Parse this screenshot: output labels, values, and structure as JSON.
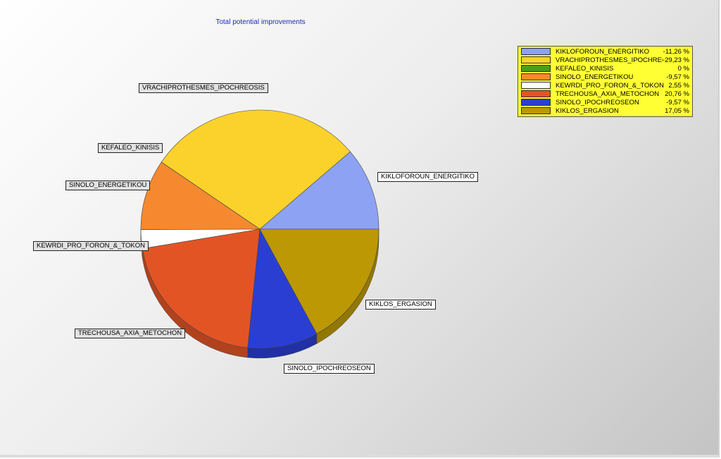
{
  "chart_data": {
    "type": "pie",
    "title": "Total potential improvements",
    "series": [
      {
        "name": "KIKLOFOROUN_ENERGITIKO",
        "value": -11.26,
        "value_label": "-11,26 %",
        "color": "#8ea2f4"
      },
      {
        "name": "VRACHIPROTHESMES_IPOCHREOSIS",
        "value": -29.23,
        "value_label": "-29,23 %",
        "color": "#fbd22c"
      },
      {
        "name": "KEFALEO_KINISIS",
        "value": 0,
        "value_label": "0 %",
        "color": "#4a9e1c"
      },
      {
        "name": "SINOLO_ENERGETIKOU",
        "value": -9.57,
        "value_label": "-9,57 %",
        "color": "#f6892f"
      },
      {
        "name": "KEWRDI_PRO_FORON_&_TOKON",
        "value": 2.55,
        "value_label": "2,55 %",
        "color": "#ffffff"
      },
      {
        "name": "TRECHOUSA_AXIA_METOCHON",
        "value": 20.76,
        "value_label": "20,76 %",
        "color": "#e35425"
      },
      {
        "name": "SINOLO_IPOCHREOSEON",
        "value": -9.57,
        "value_label": "-9,57 %",
        "color": "#2a3ed4"
      },
      {
        "name": "KIKLOS_ERGASION",
        "value": 17.05,
        "value_label": "17,05 %",
        "color": "#bc9804"
      }
    ],
    "legend_position": "top-right",
    "legend_background": "#ffff33",
    "title_color": "#1a2ab8"
  }
}
